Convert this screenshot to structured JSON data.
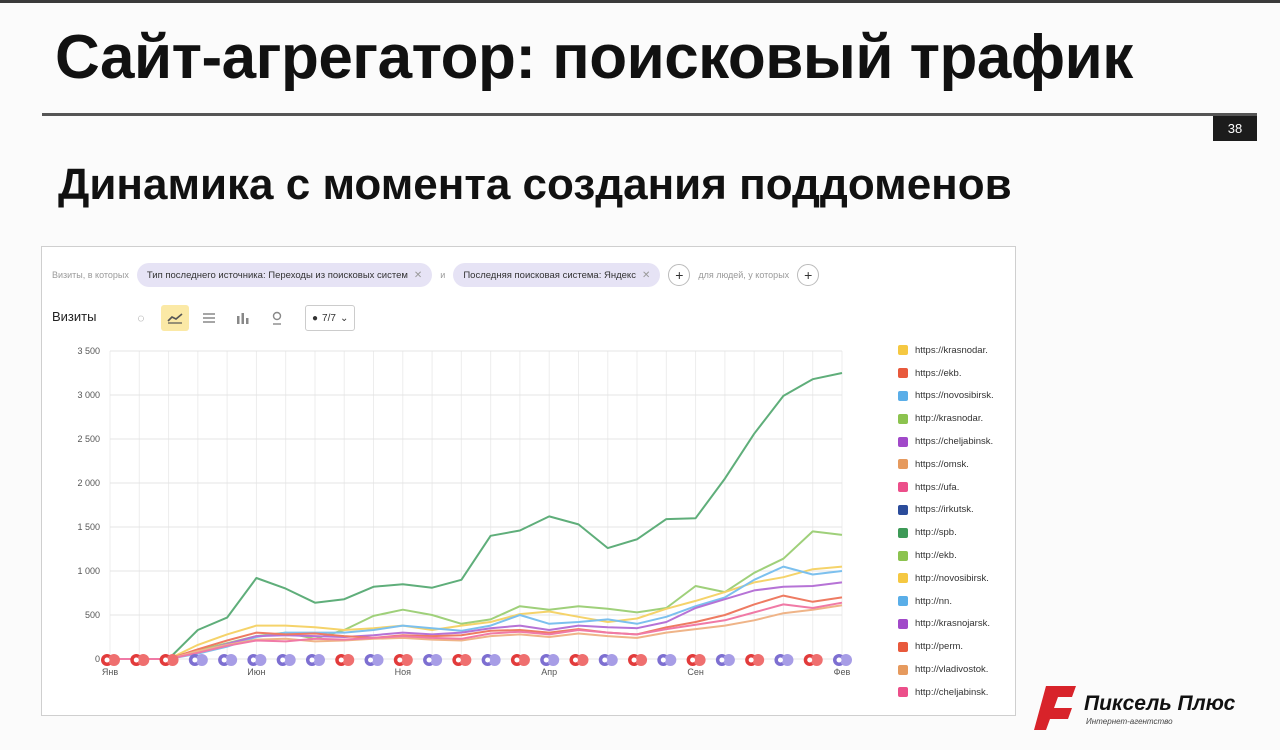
{
  "slide": {
    "title": "Сайт-агрегатор: поисковый трафик",
    "page_number": "38",
    "subtitle": "Динамика с момента создания поддоменов"
  },
  "filters": {
    "prefix": "Визиты, в которых",
    "pill1": "Тип последнего источника: Переходы из поисковых систем",
    "conj": "и",
    "pill2": "Последняя поисковая система: Яндекс",
    "suffix": "для людей, у которых"
  },
  "toolbar": {
    "metric": "Визиты",
    "count_label": "7/7",
    "active_tool": "line-chart"
  },
  "legend": [
    {
      "label": "https://krasnodar.",
      "color": "#f5c842"
    },
    {
      "label": "https://ekb.",
      "color": "#e8593c"
    },
    {
      "label": "https://novosibirsk.",
      "color": "#5aaee8"
    },
    {
      "label": "http://krasnodar.",
      "color": "#8cc34f"
    },
    {
      "label": "https://cheljabinsk.",
      "color": "#a149c9"
    },
    {
      "label": "https://omsk.",
      "color": "#e69a5e"
    },
    {
      "label": "https://ufa.",
      "color": "#ec4f8a"
    },
    {
      "label": "https://irkutsk.",
      "color": "#2b4c9b"
    },
    {
      "label": "http://spb.",
      "color": "#3d9a57"
    },
    {
      "label": "http://ekb.",
      "color": "#8cc34f"
    },
    {
      "label": "http://novosibirsk.",
      "color": "#f5c842"
    },
    {
      "label": "http://nn.",
      "color": "#5aaee8"
    },
    {
      "label": "http://krasnojarsk.",
      "color": "#a149c9"
    },
    {
      "label": "http://perm.",
      "color": "#e8593c"
    },
    {
      "label": "http://vladivostok.",
      "color": "#e69a5e"
    },
    {
      "label": "http://cheljabinsk.",
      "color": "#ec4f8a"
    }
  ],
  "chart_data": {
    "type": "line",
    "ylim": [
      0,
      3500
    ],
    "y_ticks": [
      "3 500",
      "3 000",
      "2 500",
      "2 000",
      "1 500",
      "1 000",
      "500",
      "0"
    ],
    "x_tick_labels": [
      {
        "label": "Янв",
        "index": 0
      },
      {
        "label": "Июн",
        "index": 5
      },
      {
        "label": "Ноя",
        "index": 10
      },
      {
        "label": "Апр",
        "index": 15
      },
      {
        "label": "Сен",
        "index": 20
      },
      {
        "label": "Фев",
        "index": 25
      }
    ],
    "grid": true,
    "x_count": 26,
    "series": [
      {
        "name": "http://spb.",
        "color": "#5fae7a",
        "values": [
          0,
          0,
          0,
          330,
          470,
          920,
          800,
          640,
          680,
          820,
          850,
          810,
          900,
          1400,
          1460,
          1620,
          1530,
          1260,
          1360,
          1590,
          1600,
          2050,
          2560,
          2990,
          3180,
          3250
        ]
      },
      {
        "name": "http://ekb.",
        "color": "#9fd07a",
        "values": [
          0,
          0,
          0,
          100,
          180,
          260,
          300,
          230,
          330,
          490,
          560,
          500,
          400,
          450,
          600,
          560,
          600,
          570,
          530,
          580,
          830,
          760,
          980,
          1140,
          1450,
          1410
        ]
      },
      {
        "name": "https://krasnodar.",
        "color": "#f5d36a",
        "values": [
          0,
          0,
          0,
          160,
          280,
          380,
          380,
          360,
          330,
          350,
          380,
          330,
          380,
          420,
          510,
          540,
          480,
          420,
          460,
          570,
          660,
          760,
          870,
          930,
          1020,
          1050
        ]
      },
      {
        "name": "https://novosibirsk.",
        "color": "#7cc0ee",
        "values": [
          0,
          0,
          0,
          60,
          140,
          250,
          300,
          300,
          300,
          330,
          380,
          350,
          320,
          380,
          500,
          400,
          420,
          450,
          400,
          480,
          600,
          700,
          900,
          1050,
          960,
          1000
        ]
      },
      {
        "name": "https://cheljabinsk.",
        "color": "#b673d6",
        "values": [
          0,
          0,
          0,
          80,
          170,
          260,
          270,
          260,
          250,
          270,
          300,
          280,
          300,
          350,
          380,
          330,
          380,
          360,
          350,
          420,
          580,
          680,
          780,
          820,
          830,
          870
        ]
      },
      {
        "name": "https://ekb.",
        "color": "#ee7b62",
        "values": [
          0,
          0,
          0,
          110,
          210,
          300,
          280,
          290,
          260,
          240,
          270,
          260,
          270,
          320,
          330,
          300,
          340,
          300,
          280,
          360,
          420,
          500,
          620,
          720,
          650,
          700
        ]
      },
      {
        "name": "https://omsk.",
        "color": "#efb488",
        "values": [
          0,
          0,
          0,
          90,
          160,
          220,
          230,
          200,
          210,
          230,
          240,
          220,
          210,
          260,
          280,
          250,
          290,
          260,
          240,
          300,
          340,
          380,
          440,
          520,
          560,
          610
        ]
      },
      {
        "name": "https://ufa.",
        "color": "#f07aa6",
        "values": [
          0,
          0,
          0,
          70,
          150,
          210,
          200,
          230,
          220,
          240,
          260,
          240,
          230,
          290,
          310,
          280,
          330,
          300,
          280,
          340,
          390,
          440,
          530,
          620,
          580,
          640
        ]
      }
    ]
  }
}
